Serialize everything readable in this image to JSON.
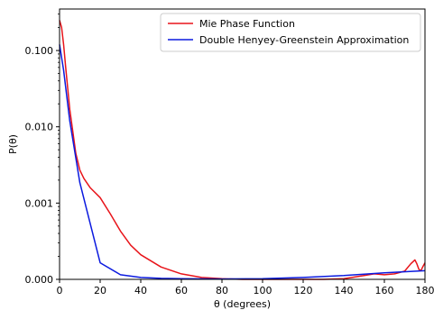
{
  "chart_data": {
    "type": "line",
    "xlabel": "θ (degrees)",
    "ylabel": "P(θ)",
    "xlim": [
      0,
      180
    ],
    "ylim": [
      0.0001,
      0.35
    ],
    "yscale": "log",
    "grid": false,
    "legend_position": "top-right",
    "x_ticks": [
      0,
      20,
      40,
      60,
      80,
      100,
      120,
      140,
      160,
      180
    ],
    "x_tick_labels": [
      "0",
      "20",
      "40",
      "60",
      "80",
      "100",
      "120",
      "140",
      "160",
      "180"
    ],
    "y_ticks": [
      0.0001,
      0.001,
      0.01,
      0.1
    ],
    "y_tick_labels": [
      "0.000",
      "0.001",
      "0.010",
      "0.100"
    ],
    "series": [
      {
        "name": "Mie Phase Function",
        "color": "#e8141a",
        "x": [
          0,
          1,
          2,
          3,
          5,
          8,
          10,
          12,
          15,
          20,
          25,
          30,
          35,
          40,
          50,
          60,
          70,
          80,
          90,
          100,
          110,
          120,
          130,
          140,
          150,
          155,
          160,
          165,
          170,
          173,
          175,
          176,
          177,
          178,
          179,
          180
        ],
        "y": [
          0.25,
          0.2,
          0.12,
          0.06,
          0.017,
          0.0045,
          0.0027,
          0.0021,
          0.0016,
          0.00118,
          0.00072,
          0.00043,
          0.00028,
          0.00021,
          0.000145,
          0.000118,
          0.000106,
          0.000102,
          0.0001,
          0.0001,
          0.0001,
          0.0001,
          0.0001,
          0.000102,
          0.000112,
          0.000118,
          0.000115,
          0.000118,
          0.000128,
          0.00016,
          0.00018,
          0.00016,
          0.000135,
          0.00013,
          0.000148,
          0.000165
        ]
      },
      {
        "name": "Double Henyey-Greenstein Approximation",
        "color": "#0b1adf",
        "x": [
          0,
          2,
          5,
          10,
          20,
          30,
          40,
          50,
          60,
          80,
          100,
          120,
          140,
          160,
          180
        ],
        "y": [
          0.12,
          0.055,
          0.012,
          0.00185,
          0.000165,
          0.000115,
          0.000106,
          0.000103,
          0.000102,
          0.000101,
          0.000102,
          0.000106,
          0.000112,
          0.000122,
          0.00013
        ]
      }
    ]
  }
}
